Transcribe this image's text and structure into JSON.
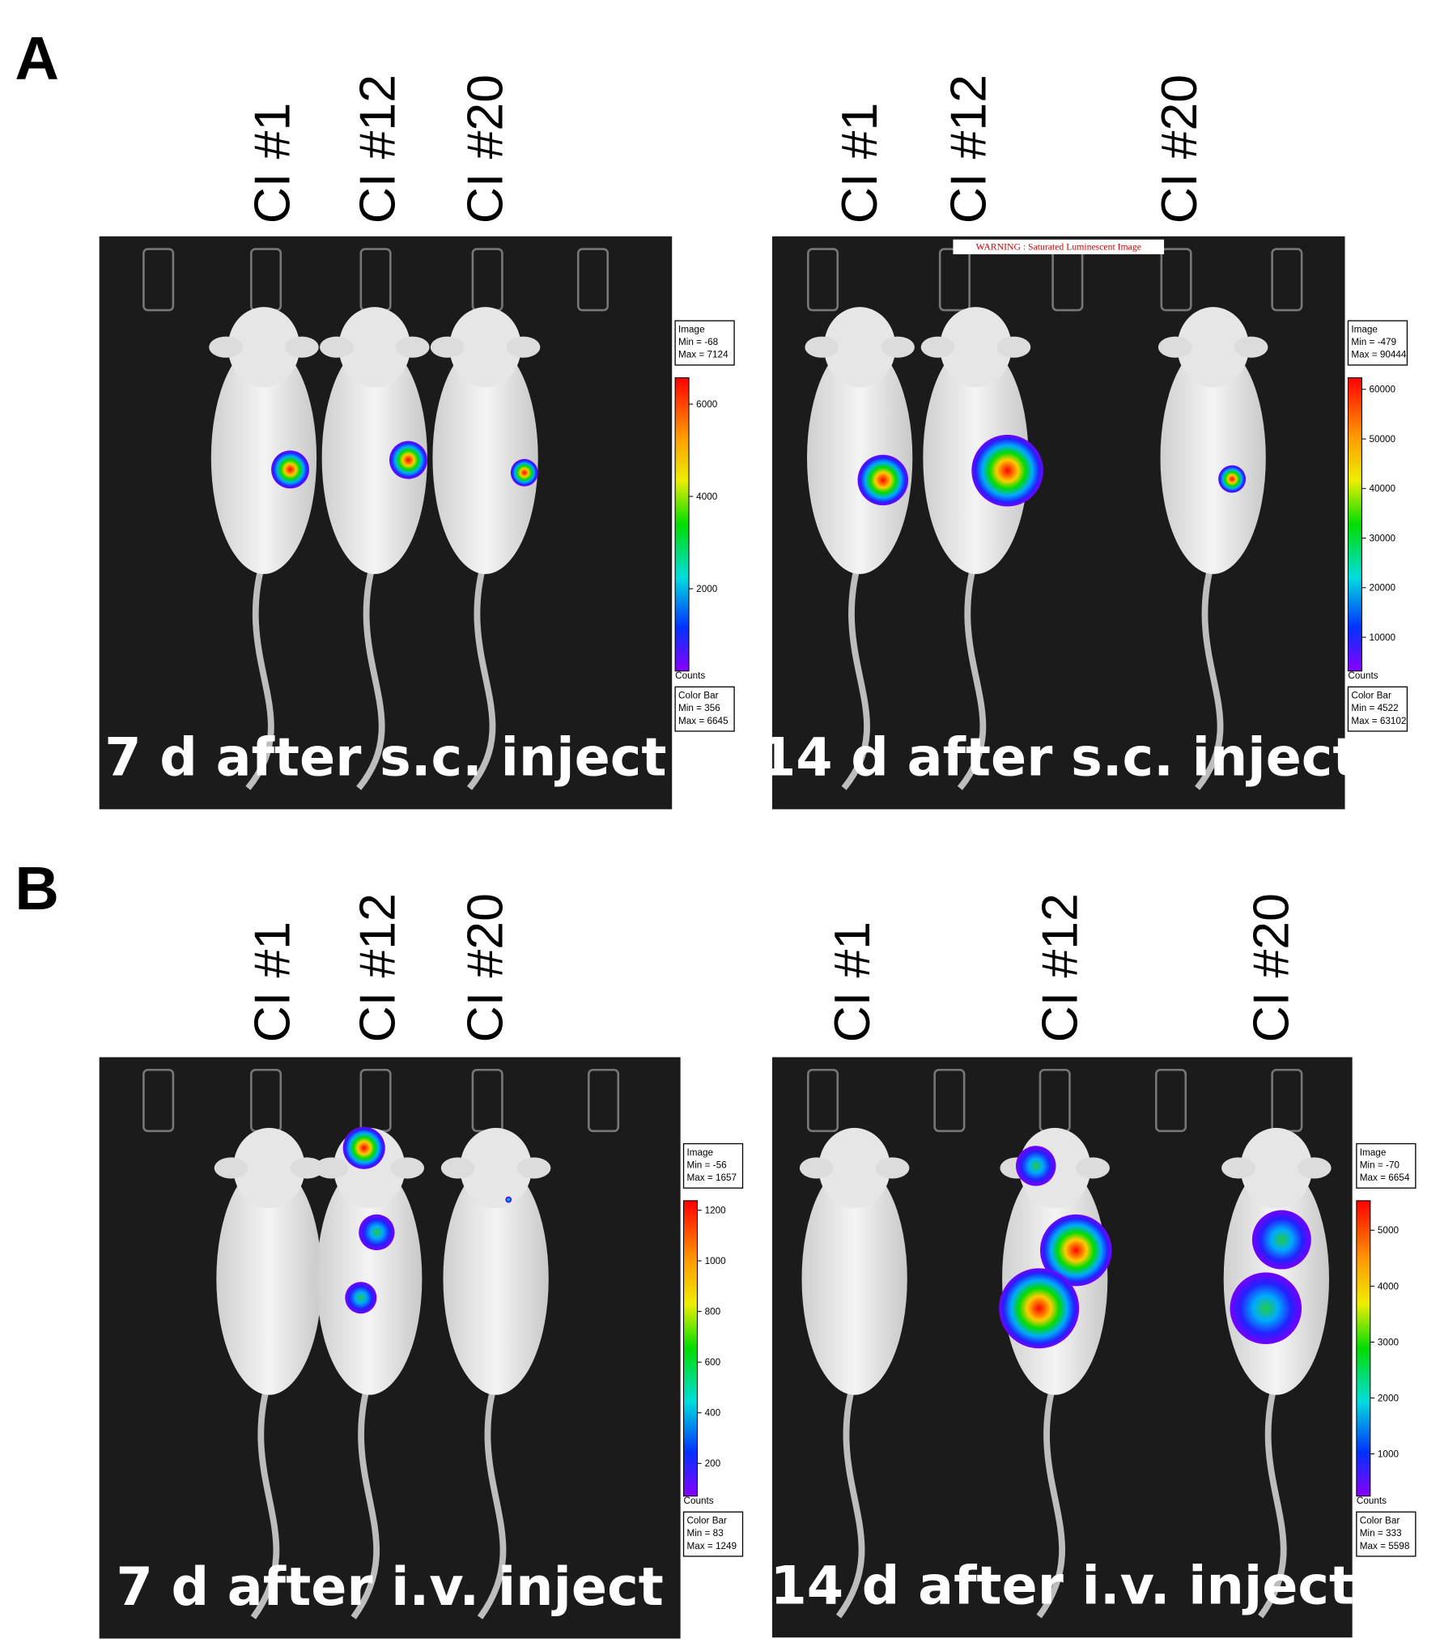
{
  "panels": [
    {
      "label": "A",
      "images": [
        {
          "columns": [
            "CI #1",
            "CI #12",
            "CI #20"
          ],
          "caption": "7 d after s.c. inject",
          "image_box": [
            "Image",
            "Min = -68",
            "Max = 7124"
          ],
          "ticks": [
            6000,
            4000,
            2000
          ],
          "units": "Counts",
          "color_bar_box": [
            "Color Bar",
            "Min = 356",
            "Max = 6645"
          ]
        },
        {
          "columns": [
            "CI #1",
            "CI #12",
            "CI #20"
          ],
          "caption": "14 d after s.c. inject",
          "warning": "WARNING : Saturated Luminescent Image",
          "image_box": [
            "Image",
            "Min = -479",
            "Max = 90444"
          ],
          "ticks": [
            60000,
            50000,
            40000,
            30000,
            20000,
            10000
          ],
          "units": "Counts",
          "color_bar_box": [
            "Color Bar",
            "Min = 4522",
            "Max = 63102"
          ]
        }
      ]
    },
    {
      "label": "B",
      "images": [
        {
          "columns": [
            "CI #1",
            "CI #12",
            "CI #20"
          ],
          "caption": "7 d after i.v. inject",
          "image_box": [
            "Image",
            "Min = -56",
            "Max = 1657"
          ],
          "ticks": [
            1200,
            1000,
            800,
            600,
            400,
            200
          ],
          "units": "Counts",
          "color_bar_box": [
            "Color Bar",
            "Min = 83",
            "Max = 1249"
          ]
        },
        {
          "columns": [
            "CI #1",
            "CI #12",
            "CI #20"
          ],
          "caption": "14 d after i.v. inject",
          "image_box": [
            "Image",
            "Min = -70",
            "Max = 6654"
          ],
          "ticks": [
            5000,
            4000,
            3000,
            2000,
            1000
          ],
          "units": "Counts",
          "color_bar_box": [
            "Color Bar",
            "Min = 333",
            "Max = 5598"
          ]
        }
      ]
    }
  ]
}
